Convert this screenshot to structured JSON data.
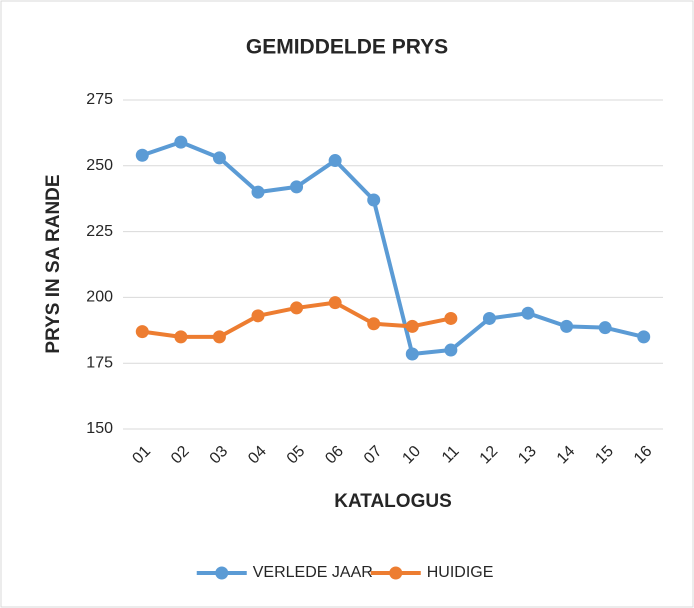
{
  "chart_data": {
    "type": "line",
    "title": "GEMIDDELDE PRYS",
    "x_label": "KATALOGUS",
    "y_label": "PRYS IN SA RANDE",
    "categories": [
      "01",
      "02",
      "03",
      "04",
      "05",
      "06",
      "07",
      "10",
      "11",
      "12",
      "13",
      "14",
      "15",
      "16"
    ],
    "series": [
      {
        "name": "VERLEDE JAAR",
        "color": "#5b9bd5",
        "values": [
          254,
          259,
          253,
          240,
          242,
          252,
          237,
          178.5,
          180,
          192,
          194,
          189,
          188.5,
          185
        ]
      },
      {
        "name": "HUIDIGE",
        "color": "#ed7d31",
        "values": [
          187,
          185,
          185,
          193,
          196,
          198,
          190,
          189,
          192,
          null,
          null,
          null,
          null,
          null
        ]
      }
    ],
    "ylim": [
      150,
      275
    ],
    "yticks": [
      150,
      175,
      200,
      225,
      250,
      275
    ],
    "grid": true,
    "legend": "bottom"
  }
}
